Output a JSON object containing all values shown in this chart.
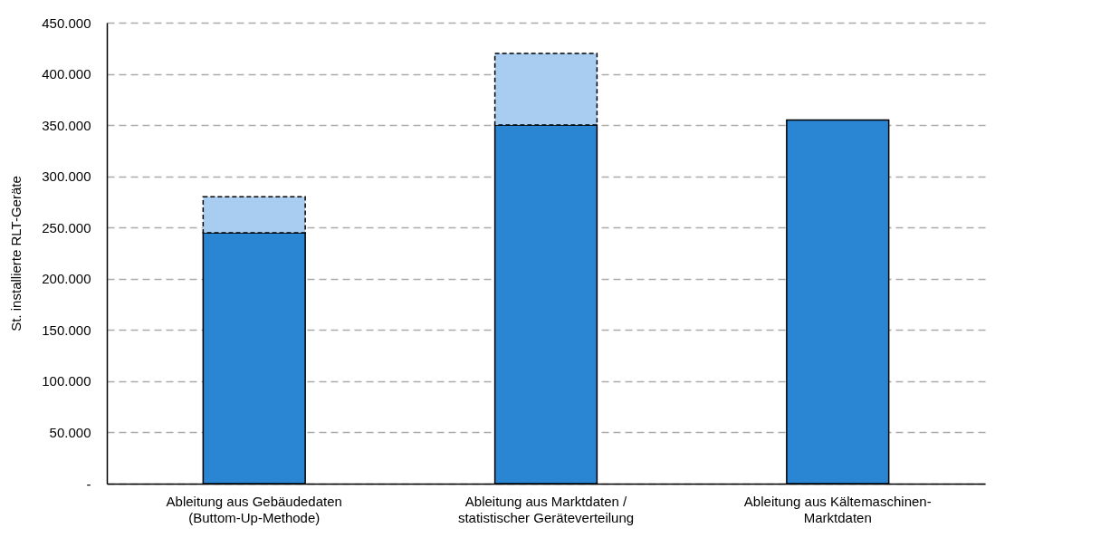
{
  "chart_data": {
    "type": "bar",
    "ylabel": "St. installierte RLT-Geräte",
    "stacked": true,
    "categories": [
      "Ableitung aus Gebäudedaten\n(Buttom-Up-Methode)",
      "Ableitung aus Marktdaten /\nstatistischer Geräteverteilung",
      "Ableitung aus Kältemaschinen-\nMarktdaten"
    ],
    "series": [
      {
        "color": "#2a85d2",
        "line_style": "solid",
        "values": [
          245000,
          350000,
          355000
        ]
      },
      {
        "color": "#a8cdf0",
        "line_style": "dashed",
        "values": [
          35000,
          70000,
          null
        ]
      }
    ],
    "ylim": [
      0,
      450000
    ],
    "yticks": [
      {
        "value": 0,
        "label": "-"
      },
      {
        "value": 50000,
        "label": "50.000"
      },
      {
        "value": 100000,
        "label": "100.000"
      },
      {
        "value": 150000,
        "label": "150.000"
      },
      {
        "value": 200000,
        "label": "200.000"
      },
      {
        "value": 250000,
        "label": "250.000"
      },
      {
        "value": 300000,
        "label": "300.000"
      },
      {
        "value": 350000,
        "label": "350.000"
      },
      {
        "value": 400000,
        "label": "400.000"
      },
      {
        "value": 450000,
        "label": "450.000"
      }
    ],
    "grid": "y"
  }
}
